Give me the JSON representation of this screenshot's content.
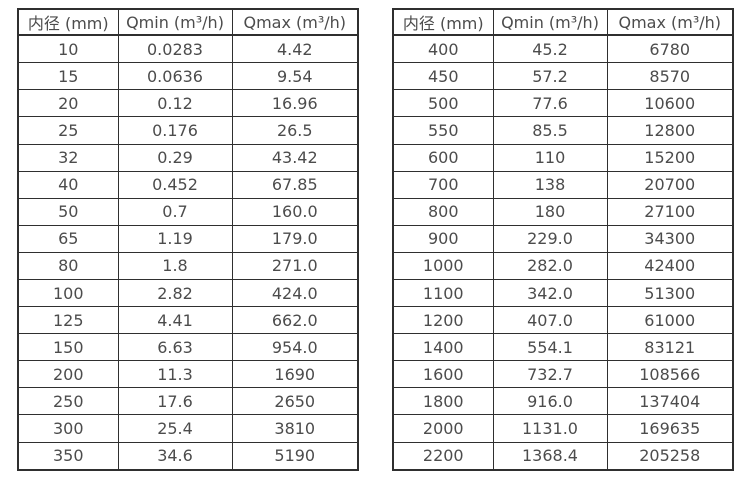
{
  "colors": {
    "background": "#ffffff",
    "border": "#2f2f2f",
    "text": "#4c4c4c"
  },
  "headers": {
    "diameter": "内径 (mm)",
    "qmin": "Qmin (m³/h)",
    "qmax": "Qmax (m³/h)"
  },
  "left_table": {
    "rows": [
      [
        "10",
        "0.0283",
        "4.42"
      ],
      [
        "15",
        "0.0636",
        "9.54"
      ],
      [
        "20",
        "0.12",
        "16.96"
      ],
      [
        "25",
        "0.176",
        "26.5"
      ],
      [
        "32",
        "0.29",
        "43.42"
      ],
      [
        "40",
        "0.452",
        "67.85"
      ],
      [
        "50",
        "0.7",
        "160.0"
      ],
      [
        "65",
        "1.19",
        "179.0"
      ],
      [
        "80",
        "1.8",
        "271.0"
      ],
      [
        "100",
        "2.82",
        "424.0"
      ],
      [
        "125",
        "4.41",
        "662.0"
      ],
      [
        "150",
        "6.63",
        "954.0"
      ],
      [
        "200",
        "11.3",
        "1690"
      ],
      [
        "250",
        "17.6",
        "2650"
      ],
      [
        "300",
        "25.4",
        "3810"
      ],
      [
        "350",
        "34.6",
        "5190"
      ]
    ]
  },
  "right_table": {
    "rows": [
      [
        "400",
        "45.2",
        "6780"
      ],
      [
        "450",
        "57.2",
        "8570"
      ],
      [
        "500",
        "77.6",
        "10600"
      ],
      [
        "550",
        "85.5",
        "12800"
      ],
      [
        "600",
        "110",
        "15200"
      ],
      [
        "700",
        "138",
        "20700"
      ],
      [
        "800",
        "180",
        "27100"
      ],
      [
        "900",
        "229.0",
        "34300"
      ],
      [
        "1000",
        "282.0",
        "42400"
      ],
      [
        "1100",
        "342.0",
        "51300"
      ],
      [
        "1200",
        "407.0",
        "61000"
      ],
      [
        "1400",
        "554.1",
        "83121"
      ],
      [
        "1600",
        "732.7",
        "108566"
      ],
      [
        "1800",
        "916.0",
        "137404"
      ],
      [
        "2000",
        "1131.0",
        "169635"
      ],
      [
        "2200",
        "1368.4",
        "205258"
      ]
    ]
  }
}
